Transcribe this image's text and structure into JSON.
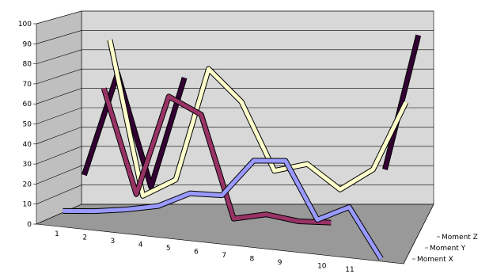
{
  "chart_data": {
    "type": "line",
    "style": "3d-ribbon",
    "categories": [
      "1",
      "2",
      "3",
      "4",
      "5",
      "6",
      "7",
      "8",
      "9",
      "10",
      "11"
    ],
    "ylim": [
      0,
      100
    ],
    "yticks": [
      "0",
      "10",
      "20",
      "30",
      "40",
      "50",
      "60",
      "70",
      "80",
      "90",
      "100"
    ],
    "grid": true,
    "series": [
      {
        "name": "Moment X",
        "color": "#9999ff",
        "values": [
          3,
          4,
          6,
          9,
          17,
          17,
          37,
          38,
          7,
          15,
          -12
        ]
      },
      {
        "name": "Moment Y",
        "color": "#993366",
        "values": [
          null,
          67,
          11,
          64,
          55,
          0,
          3,
          0,
          0,
          null,
          null
        ]
      },
      {
        "name": "Moment Z",
        "color": "#ffffcc",
        "values": [
          null,
          90,
          8,
          17,
          76,
          59,
          23,
          27,
          14,
          25,
          61
        ]
      },
      {
        "name": "",
        "color": "#330033",
        "values": [
          16,
          69,
          10,
          67,
          null,
          null,
          null,
          null,
          null,
          20,
          90
        ]
      }
    ],
    "legend_position": "right-depth"
  }
}
